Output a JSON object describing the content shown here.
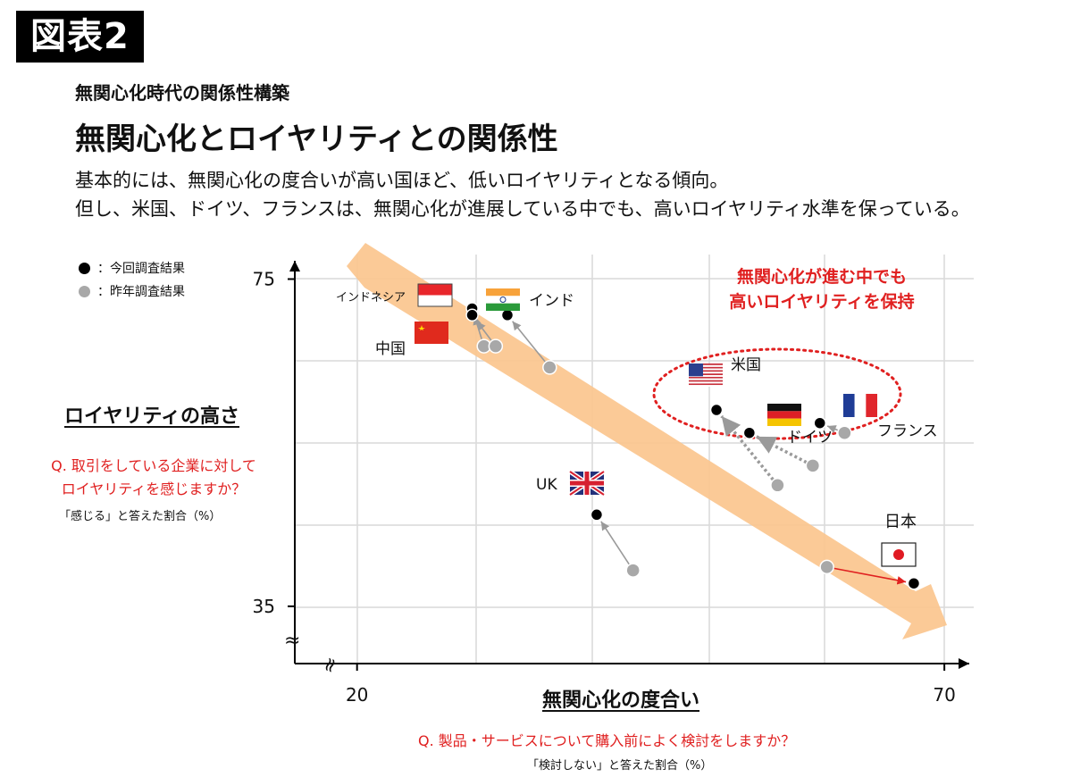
{
  "figure_label": "図表2",
  "kicker": "無関心化時代の関係性構築",
  "title": "無関心化とロイヤリティとの関係性",
  "description": [
    "基本的には、無関心化の度合いが高い国ほど、低いロイヤリティとなる傾向。",
    "但し、米国、ドイツ、フランスは、無関心化が進展している中でも、高いロイヤリティ水準を保っている。"
  ],
  "legend": {
    "current": "：今回調査結果",
    "previous": "：昨年調査結果"
  },
  "y_axis": {
    "title": "ロイヤリティの高さ",
    "question": [
      "Q. 取引をしている企業に対して",
      "ロイヤリティを感じますか？"
    ],
    "note": "「感じる」と答えた割合（%）",
    "tick_labels": [
      "75",
      "35"
    ],
    "break_mark": "≈"
  },
  "x_axis": {
    "title": "無関心化の度合い",
    "question": "Q. 製品・サービスについて購入前によく検討をしますか？",
    "note": "「検討しない」と答えた割合（%）",
    "tick_labels": [
      "20",
      "70"
    ],
    "break_mark": "≈"
  },
  "callout": [
    "無関心化が進む中でも",
    "高いロイヤリティを保持"
  ],
  "colors": {
    "current": "#000000",
    "previous": "#a8a8a8",
    "trend_arrow": "#fbc68e",
    "callout": "#e02020",
    "grid": "#d9d9d9"
  },
  "chart_data": {
    "type": "scatter",
    "xlim": [
      14.7,
      72.5
    ],
    "ylim": [
      28,
      78
    ],
    "x_ticks": [
      20,
      70
    ],
    "y_ticks": [
      35,
      75
    ],
    "grid": true,
    "legend_position": "top-left",
    "series": [
      {
        "name": "：今回調査結果",
        "points": [
          {
            "label": "インドネシア",
            "x": 29.8,
            "y": 71.4
          },
          {
            "label": "インド",
            "x": 32.8,
            "y": 70.6
          },
          {
            "label": "中国",
            "x": 29.8,
            "y": 70.6
          },
          {
            "label": "米国",
            "x": 50.6,
            "y": 59.0
          },
          {
            "label": "ドイツ",
            "x": 53.4,
            "y": 56.2
          },
          {
            "label": "フランス",
            "x": 59.4,
            "y": 57.4
          },
          {
            "label": "UK",
            "x": 40.4,
            "y": 46.2
          },
          {
            "label": "日本",
            "x": 67.4,
            "y": 37.8
          }
        ]
      },
      {
        "name": "：昨年調査結果",
        "points": [
          {
            "label": "インドネシア",
            "x": 30.8,
            "y": 66.8
          },
          {
            "label": "インド",
            "x": 36.4,
            "y": 64.2
          },
          {
            "label": "中国",
            "x": 31.8,
            "y": 66.8
          },
          {
            "label": "米国",
            "x": 55.8,
            "y": 49.8
          },
          {
            "label": "ドイツ",
            "x": 58.8,
            "y": 52.2
          },
          {
            "label": "フランス",
            "x": 61.5,
            "y": 56.2
          },
          {
            "label": "UK",
            "x": 43.5,
            "y": 39.4
          },
          {
            "label": "日本",
            "x": 60.0,
            "y": 39.8
          }
        ]
      }
    ],
    "country_labels": [
      "インドネシア",
      "インド",
      "中国",
      "米国",
      "ドイツ",
      "フランス",
      "UK",
      "日本"
    ]
  }
}
